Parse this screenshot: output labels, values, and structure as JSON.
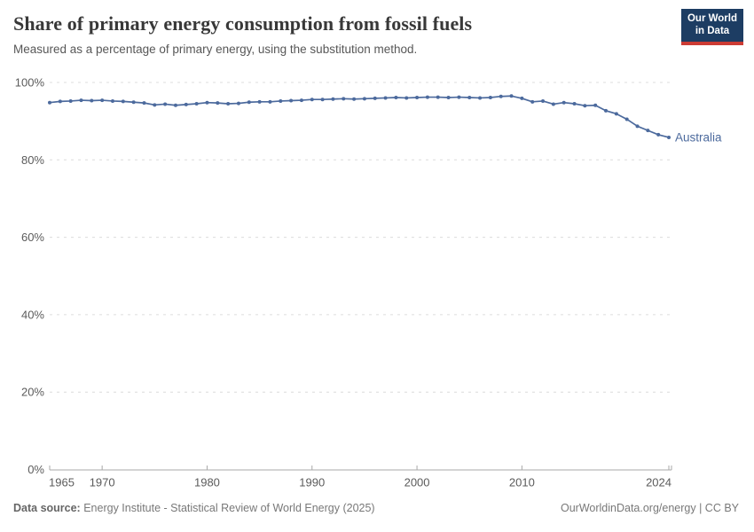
{
  "header": {
    "title": "Share of primary energy consumption from fossil fuels",
    "subtitle": "Measured as a percentage of primary energy, using the substitution method.",
    "logo_line1": "Our World",
    "logo_line2": "in Data"
  },
  "footer": {
    "source_label": "Data source:",
    "source_text": " Energy Institute - Statistical Review of World Energy (2025)",
    "rights_text": "OurWorldinData.org/energy | CC BY"
  },
  "colors": {
    "series_blue": "#4C6A9D",
    "grid_gray": "#dcdcdc",
    "axis_gray": "#a8a8a8",
    "tick_text": "#5b5b5b",
    "logo_navy": "#1d3d63",
    "logo_red": "#cc3b34"
  },
  "chart_data": {
    "type": "line",
    "title": "Share of primary energy consumption from fossil fuels",
    "subtitle": "Measured as a percentage of primary energy, using the substitution method.",
    "xlabel": "",
    "ylabel": "",
    "ylim": [
      0,
      100
    ],
    "grid": "horizontal-dashed",
    "legend_position": "end-of-line-label",
    "yticks": [
      {
        "value": 0,
        "label": "0%"
      },
      {
        "value": 20,
        "label": "20%"
      },
      {
        "value": 40,
        "label": "40%"
      },
      {
        "value": 60,
        "label": "60%"
      },
      {
        "value": 80,
        "label": "80%"
      },
      {
        "value": 100,
        "label": "100%"
      }
    ],
    "xticks": [
      {
        "value": 1965,
        "label": "1965"
      },
      {
        "value": 1970,
        "label": "1970"
      },
      {
        "value": 1980,
        "label": "1980"
      },
      {
        "value": 1990,
        "label": "1990"
      },
      {
        "value": 2000,
        "label": "2000"
      },
      {
        "value": 2010,
        "label": "2010"
      },
      {
        "value": 2024,
        "label": "2024"
      }
    ],
    "x": [
      1965,
      1966,
      1967,
      1968,
      1969,
      1970,
      1971,
      1972,
      1973,
      1974,
      1975,
      1976,
      1977,
      1978,
      1979,
      1980,
      1981,
      1982,
      1983,
      1984,
      1985,
      1986,
      1987,
      1988,
      1989,
      1990,
      1991,
      1992,
      1993,
      1994,
      1995,
      1996,
      1997,
      1998,
      1999,
      2000,
      2001,
      2002,
      2003,
      2004,
      2005,
      2006,
      2007,
      2008,
      2009,
      2010,
      2011,
      2012,
      2013,
      2014,
      2015,
      2016,
      2017,
      2018,
      2019,
      2020,
      2021,
      2022,
      2023,
      2024
    ],
    "series": [
      {
        "name": "Australia",
        "color": "#4C6A9D",
        "values": [
          94.8,
          95.1,
          95.2,
          95.4,
          95.3,
          95.4,
          95.2,
          95.1,
          94.9,
          94.7,
          94.2,
          94.4,
          94.1,
          94.3,
          94.5,
          94.8,
          94.7,
          94.5,
          94.6,
          94.9,
          95.0,
          95.0,
          95.2,
          95.3,
          95.4,
          95.6,
          95.6,
          95.7,
          95.8,
          95.7,
          95.8,
          95.9,
          96.0,
          96.1,
          96.0,
          96.1,
          96.2,
          96.2,
          96.1,
          96.2,
          96.1,
          96.0,
          96.1,
          96.4,
          96.5,
          95.9,
          95.0,
          95.2,
          94.4,
          94.8,
          94.5,
          94.0,
          94.1,
          92.7,
          91.9,
          90.5,
          88.7,
          87.6,
          86.5,
          85.8
        ]
      }
    ]
  }
}
